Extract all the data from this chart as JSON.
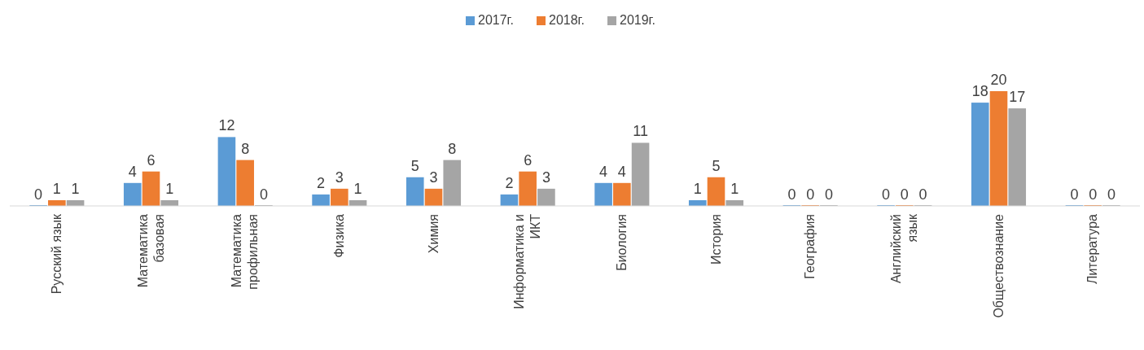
{
  "chart_data": {
    "type": "bar",
    "categories": [
      "Русский язык",
      "Математика базовая",
      "Математика профильная",
      "Физика",
      "Химия",
      "Информатика и ИКТ",
      "Биология",
      "История",
      "География",
      "Английский язык",
      "Обществознание",
      "Литература"
    ],
    "series": [
      {
        "name": "2017г.",
        "color": "#5b9bd5",
        "values": [
          0,
          4,
          12,
          2,
          5,
          2,
          4,
          1,
          0,
          0,
          18,
          0
        ]
      },
      {
        "name": "2018г.",
        "color": "#ed7d31",
        "values": [
          1,
          6,
          8,
          3,
          3,
          6,
          4,
          5,
          0,
          0,
          20,
          0
        ]
      },
      {
        "name": "2019г.",
        "color": "#a5a5a5",
        "values": [
          1,
          1,
          0,
          1,
          8,
          3,
          11,
          1,
          0,
          0,
          17,
          0
        ]
      }
    ],
    "data_labels": true,
    "legend": "top"
  }
}
